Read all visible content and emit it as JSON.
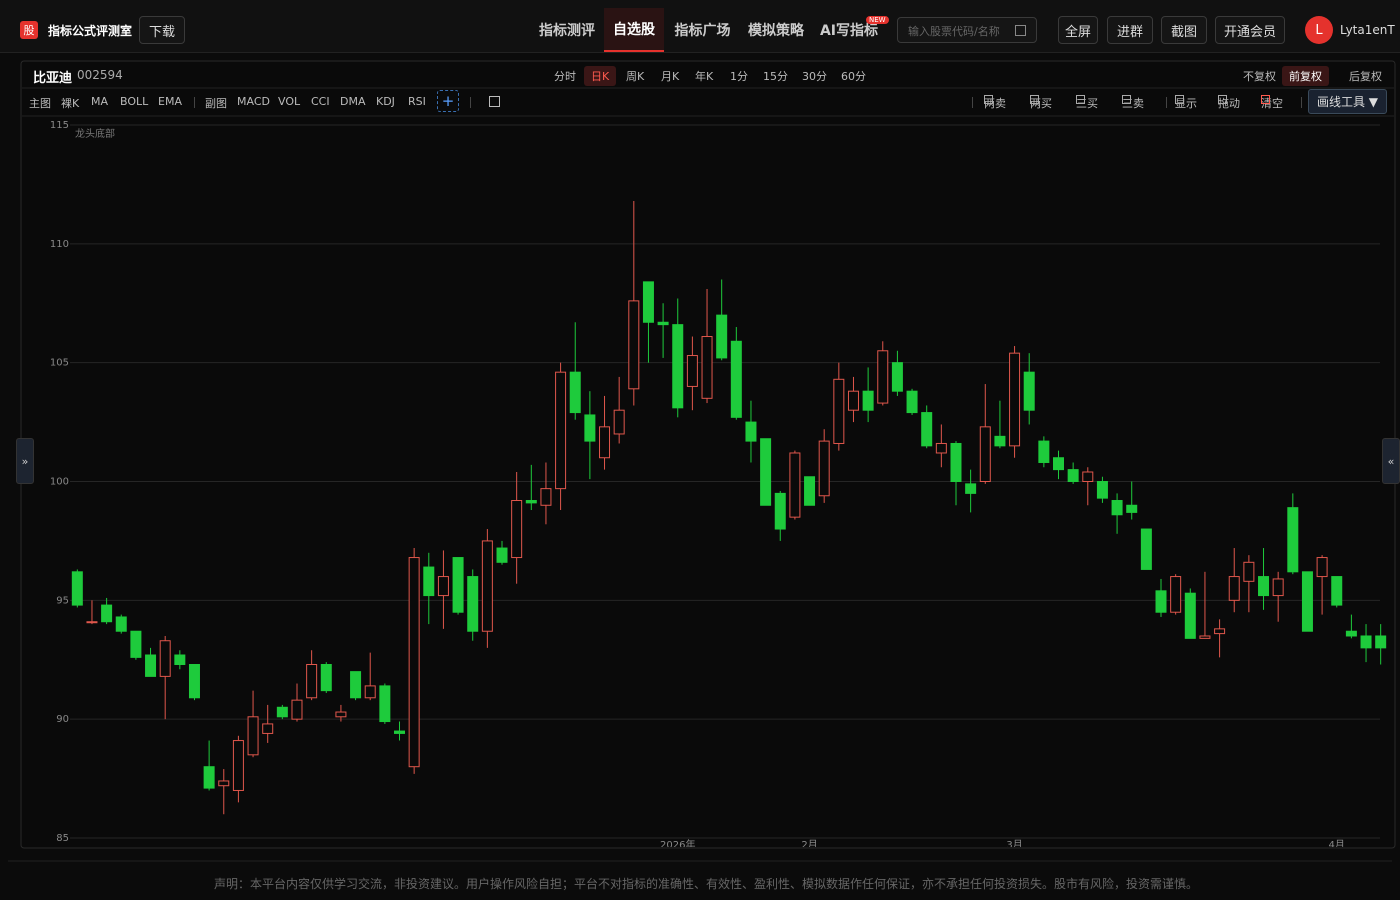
{
  "header": {
    "logo": "股",
    "title": "指标公式评测室",
    "download": "下载",
    "nav": [
      "指标测评",
      "自选股",
      "指标广场",
      "模拟策略",
      "AI写指标"
    ],
    "new_badge": "NEW",
    "search_placeholder": "输入股票代码/名称",
    "buttons": [
      "全屏",
      "进群",
      "截图",
      "开通会员"
    ],
    "avatar": "L",
    "username": "Lyta1enT"
  },
  "toolbar": {
    "stock_name": "比亚迪",
    "stock_code": "002594",
    "periods": [
      "分时",
      "日K",
      "周K",
      "月K",
      "年K",
      "1分",
      "15分",
      "30分",
      "60分"
    ],
    "adjust": [
      "不复权",
      "前复权",
      "后复权"
    ],
    "main_label": "主图",
    "main_indicators": [
      "裸K",
      "MA",
      "BOLL",
      "EMA"
    ],
    "sub_label": "副图",
    "sub_indicators": [
      "MACD",
      "VOL",
      "CCI",
      "DMA",
      "KDJ",
      "RSI"
    ],
    "add": "+",
    "signals": [
      "两卖",
      "两买",
      "三买",
      "三卖",
      "显示",
      "拖动",
      "清空"
    ],
    "draw_tools": "画线工具 ▼",
    "side_toggles": [
      "»",
      "«"
    ]
  },
  "chart_data": {
    "type": "candlestick",
    "annotation": "龙头底部",
    "categories": [
      null,
      null,
      null,
      null,
      null,
      null,
      null,
      null,
      null,
      null,
      null,
      null,
      null,
      null,
      null,
      null,
      null,
      null,
      null,
      null,
      null,
      null,
      null,
      null,
      null,
      null,
      null,
      null,
      null,
      null,
      null,
      null,
      null,
      null,
      null,
      null,
      null,
      null,
      null,
      null,
      null,
      "2026年",
      null,
      null,
      null,
      null,
      null,
      null,
      null,
      null,
      "2月",
      null,
      null,
      null,
      null,
      null,
      null,
      null,
      null,
      null,
      null,
      null,
      null,
      null,
      "3月",
      null,
      null,
      null,
      null,
      null,
      null,
      null,
      null,
      null,
      null,
      null,
      null,
      null,
      null,
      null,
      null,
      null,
      null,
      null,
      null,
      null,
      "4月",
      null,
      null,
      null
    ],
    "series": [
      {
        "name": "open",
        "values": [
          96.2,
          94.1,
          94.8,
          94.3,
          93.7,
          92.7,
          91.8,
          92.7,
          92.3,
          88.0,
          87.2,
          87.0,
          88.5,
          89.4,
          90.5,
          90.0,
          90.9,
          92.3,
          90.1,
          92.0,
          90.9,
          91.4,
          89.5,
          88.0,
          96.4,
          95.2,
          96.8,
          96.0,
          93.7,
          97.2,
          96.8,
          99.2,
          99.0,
          99.7,
          104.6,
          102.8,
          101.0,
          102.0,
          103.9,
          108.4,
          106.7,
          106.6,
          104.0,
          103.5,
          107.0,
          105.9,
          102.5,
          101.8,
          99.5,
          98.5,
          100.2,
          99.4,
          101.6,
          103.0,
          103.8,
          103.3,
          105.0,
          103.8,
          102.9,
          101.2,
          101.6,
          99.9,
          100.0,
          101.9,
          101.5,
          104.6,
          101.7,
          101.0,
          100.5,
          100.0,
          100.0,
          99.2,
          99.0,
          98.0,
          95.4,
          94.5,
          95.3,
          93.4,
          93.6,
          95.0,
          95.8,
          96.0,
          95.2,
          98.9,
          96.2,
          96.0,
          96.0,
          93.7,
          93.5,
          93.5
        ]
      },
      {
        "name": "high",
        "values": [
          96.3,
          95.0,
          95.1,
          94.4,
          93.7,
          93.0,
          93.5,
          92.9,
          92.3,
          89.1,
          87.9,
          89.3,
          91.2,
          90.6,
          90.6,
          91.5,
          92.9,
          92.4,
          90.6,
          92.0,
          92.8,
          91.5,
          89.9,
          97.2,
          97.0,
          97.1,
          96.8,
          96.3,
          98.0,
          97.5,
          100.4,
          100.7,
          100.8,
          105.0,
          106.7,
          103.8,
          103.6,
          104.4,
          111.8,
          108.4,
          107.5,
          107.7,
          106.1,
          108.1,
          108.5,
          106.5,
          103.4,
          101.8,
          99.6,
          101.3,
          100.2,
          102.2,
          105.0,
          104.4,
          104.8,
          105.9,
          105.5,
          103.9,
          103.2,
          102.4,
          101.7,
          100.5,
          104.1,
          103.4,
          105.7,
          105.4,
          101.9,
          101.3,
          100.8,
          100.6,
          100.2,
          99.5,
          100.0,
          98.0,
          95.9,
          96.1,
          95.5,
          96.2,
          94.2,
          97.2,
          96.9,
          97.2,
          96.2,
          99.5,
          96.2,
          96.9,
          96.0,
          94.4,
          94.0,
          94.0
        ]
      },
      {
        "name": "low",
        "values": [
          94.7,
          94.0,
          94.0,
          93.6,
          92.5,
          91.8,
          90.0,
          92.1,
          90.8,
          87.0,
          86.0,
          86.5,
          88.4,
          89.0,
          90.0,
          89.9,
          90.8,
          91.1,
          89.9,
          90.8,
          90.8,
          89.8,
          89.1,
          87.7,
          94.0,
          93.8,
          94.4,
          93.3,
          93.0,
          96.5,
          95.7,
          98.8,
          98.2,
          98.8,
          102.6,
          100.1,
          100.5,
          101.6,
          103.2,
          105.0,
          105.2,
          102.7,
          103.0,
          103.3,
          105.1,
          102.6,
          100.8,
          99.0,
          97.5,
          98.4,
          99.0,
          99.1,
          101.3,
          102.5,
          102.5,
          103.2,
          103.6,
          102.8,
          101.4,
          100.6,
          99.0,
          98.7,
          99.9,
          101.4,
          101.0,
          102.4,
          100.6,
          100.1,
          99.9,
          99.0,
          99.1,
          97.8,
          98.4,
          96.3,
          94.3,
          94.4,
          93.4,
          93.4,
          92.6,
          94.5,
          94.5,
          94.6,
          94.1,
          96.1,
          93.7,
          94.4,
          94.7,
          93.4,
          92.4,
          92.3
        ]
      },
      {
        "name": "close",
        "values": [
          94.8,
          94.1,
          94.1,
          93.7,
          92.6,
          91.8,
          93.3,
          92.3,
          90.9,
          87.1,
          87.4,
          89.1,
          90.1,
          89.8,
          90.1,
          90.8,
          92.3,
          91.2,
          90.3,
          90.9,
          91.4,
          89.9,
          89.4,
          96.8,
          95.2,
          96.0,
          94.5,
          93.7,
          97.5,
          96.6,
          99.2,
          99.1,
          99.7,
          104.6,
          102.9,
          101.7,
          102.3,
          103.0,
          107.6,
          106.7,
          106.6,
          103.1,
          105.3,
          106.1,
          105.2,
          102.7,
          101.7,
          99.0,
          98.0,
          101.2,
          99.0,
          101.7,
          104.3,
          103.8,
          103.0,
          105.5,
          103.8,
          102.9,
          101.5,
          101.6,
          100.0,
          99.5,
          102.3,
          101.5,
          105.4,
          103.0,
          100.8,
          100.5,
          100.0,
          100.4,
          99.3,
          98.6,
          98.7,
          96.3,
          94.5,
          96.0,
          93.4,
          93.5,
          93.8,
          96.0,
          96.6,
          95.2,
          95.9,
          96.2,
          93.7,
          96.8,
          94.8,
          93.5,
          93.0,
          93.0
        ]
      }
    ],
    "up_color": "#e0574c",
    "down_color": "#1ecb3c",
    "ylim": [
      85,
      115
    ],
    "yticks": [
      85,
      90,
      95,
      100,
      105,
      110,
      115
    ],
    "grid": true
  },
  "footer": {
    "disclaimer": "声明：本平台内容仅供学习交流，非投资建议。用户操作风险自担；平台不对指标的准确性、有效性、盈利性、模拟数据作任何保证，亦不承担任何投资损失。股市有风险，投资需谨慎。"
  }
}
